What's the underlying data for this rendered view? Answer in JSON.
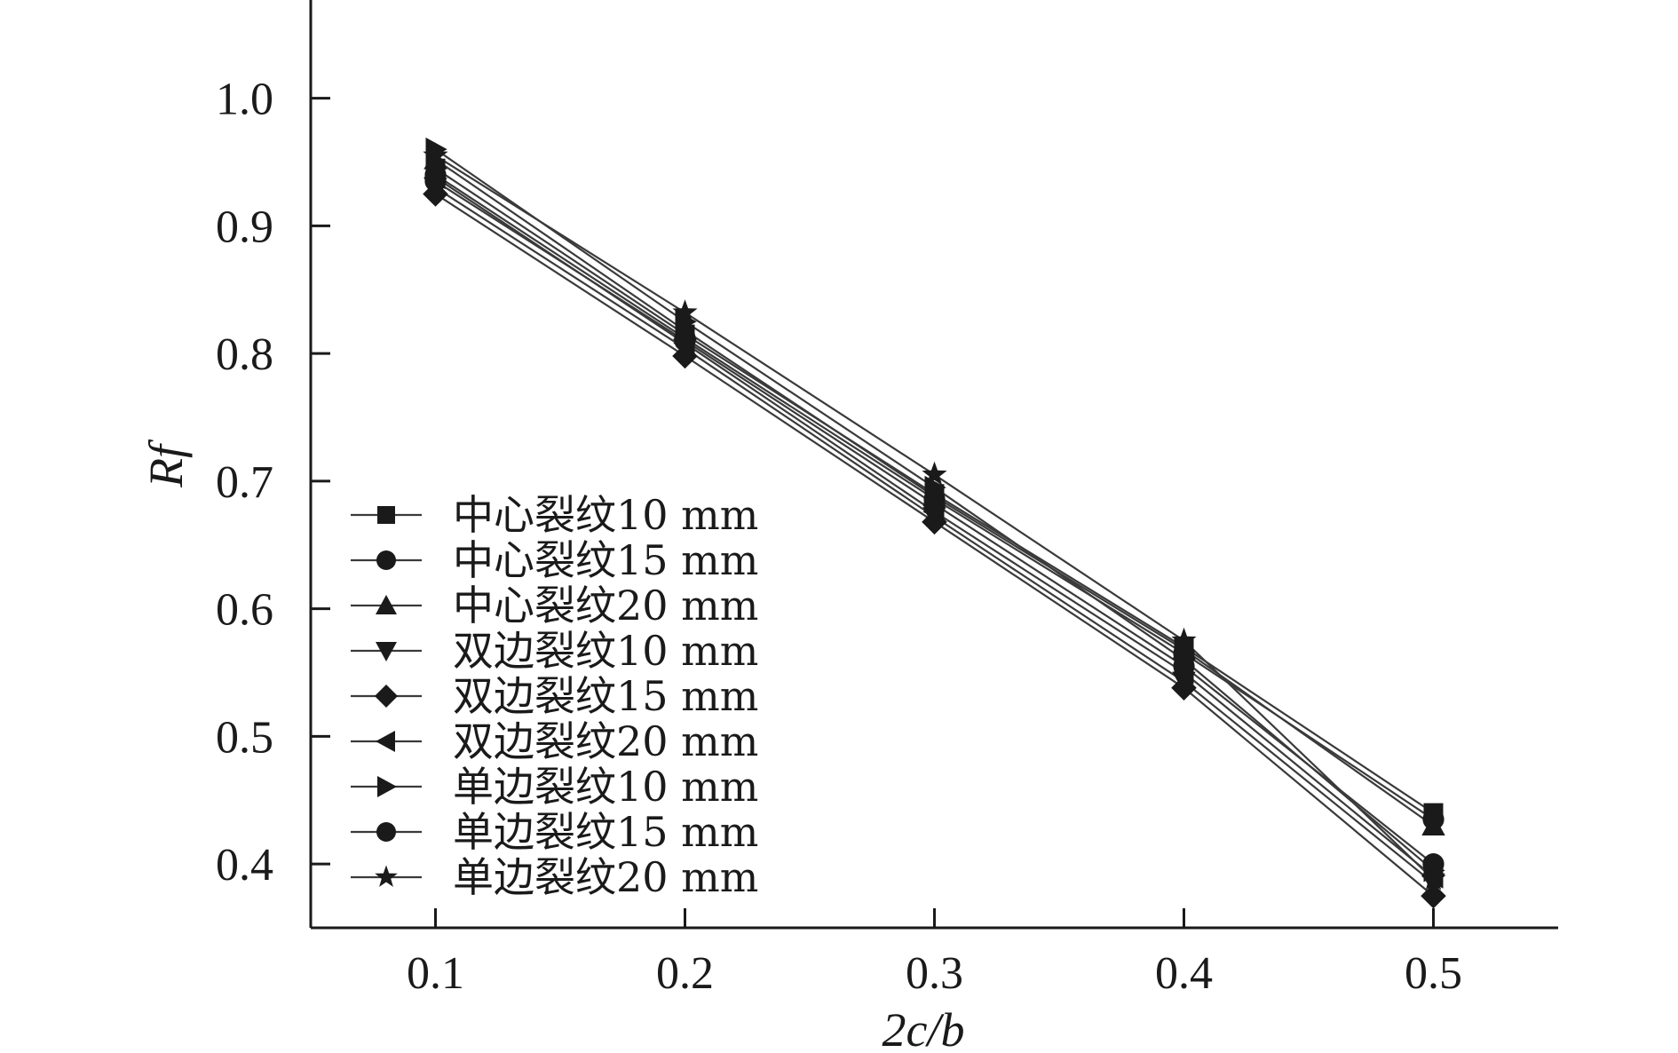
{
  "chart_data": {
    "type": "line",
    "xlabel": "2c/b",
    "ylabel": "Rf",
    "xlim": [
      0.05,
      0.55
    ],
    "ylim": [
      0.35,
      1.07
    ],
    "x": [
      0.1,
      0.2,
      0.3,
      0.4,
      0.5
    ],
    "x_ticks": [
      {
        "value": 0.1,
        "label": "0.1"
      },
      {
        "value": 0.2,
        "label": "0.2"
      },
      {
        "value": 0.3,
        "label": "0.3"
      },
      {
        "value": 0.4,
        "label": "0.4"
      },
      {
        "value": 0.5,
        "label": "0.5"
      }
    ],
    "y_ticks": [
      {
        "value": 1.0,
        "label": "1.0"
      },
      {
        "value": 0.9,
        "label": "0.9"
      },
      {
        "value": 0.8,
        "label": "0.8"
      },
      {
        "value": 0.7,
        "label": "0.7"
      },
      {
        "value": 0.6,
        "label": "0.6"
      },
      {
        "value": 0.5,
        "label": "0.5"
      },
      {
        "value": 0.4,
        "label": "0.4"
      }
    ],
    "grid": false,
    "legend_position": "lower-left",
    "series": [
      {
        "name": "中心裂纹10 mm",
        "marker": "square",
        "values": [
          0.945,
          0.815,
          0.69,
          0.57,
          0.44
        ]
      },
      {
        "name": "中心裂纹15 mm",
        "marker": "circle",
        "values": [
          0.94,
          0.812,
          0.686,
          0.565,
          0.435
        ]
      },
      {
        "name": "中心裂纹20 mm",
        "marker": "triangle-up",
        "values": [
          0.952,
          0.818,
          0.688,
          0.568,
          0.43
        ]
      },
      {
        "name": "双边裂纹10 mm",
        "marker": "triangle-down",
        "values": [
          0.93,
          0.804,
          0.672,
          0.543,
          0.385
        ]
      },
      {
        "name": "双边裂纹15 mm",
        "marker": "diamond",
        "values": [
          0.925,
          0.798,
          0.668,
          0.538,
          0.375
        ]
      },
      {
        "name": "双边裂纹20 mm",
        "marker": "triangle-left",
        "values": [
          0.938,
          0.808,
          0.676,
          0.55,
          0.39
        ]
      },
      {
        "name": "单边裂纹10 mm",
        "marker": "triangle-right",
        "values": [
          0.96,
          0.825,
          0.695,
          0.56,
          0.395
        ]
      },
      {
        "name": "单边裂纹15 mm",
        "marker": "circle",
        "values": [
          0.935,
          0.81,
          0.682,
          0.555,
          0.4
        ]
      },
      {
        "name": "单边裂纹20 mm",
        "marker": "star",
        "values": [
          0.955,
          0.832,
          0.705,
          0.575,
          0.388
        ]
      }
    ],
    "colors": {
      "line": "#3a3a3a",
      "marker": "#1a1a1a",
      "axis": "#1a1a1a"
    }
  }
}
